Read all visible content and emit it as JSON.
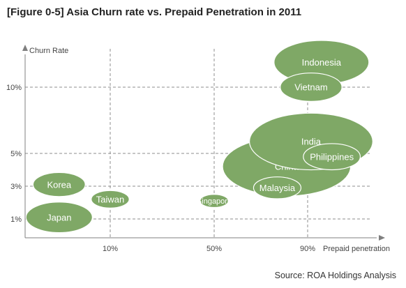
{
  "figure_title": "[Figure 0-5] Asia Churn rate vs. Prepaid Penetration in 2011",
  "source": "Source: ROA Holdings Analysis",
  "chart_data": {
    "type": "scatter",
    "subtype": "bubble",
    "title": "[Figure 0-5] Asia Churn rate vs. Prepaid Penetration in 2011",
    "xlabel": "Prepaid penetration",
    "ylabel": "Churn Rate",
    "x_ticks": [
      {
        "value": 10,
        "label": "10%"
      },
      {
        "value": 50,
        "label": "50%"
      },
      {
        "value": 90,
        "label": "90%"
      }
    ],
    "y_ticks": [
      {
        "value": 1,
        "label": "1%"
      },
      {
        "value": 3,
        "label": "3%"
      },
      {
        "value": 5,
        "label": "5%"
      },
      {
        "value": 10,
        "label": "10%"
      }
    ],
    "grid": "dashed at tick values",
    "points": [
      {
        "label": "Indonesia",
        "x": 94,
        "y": 11.3,
        "size": 1.0
      },
      {
        "label": "India",
        "x": 91,
        "y": 5.9,
        "size": 1.3
      },
      {
        "label": "China",
        "x": 81,
        "y": 4.2,
        "size": 1.35
      },
      {
        "label": "Vietnam",
        "x": 91,
        "y": 10.0,
        "size": 0.65
      },
      {
        "label": "Philippines",
        "x": 97,
        "y": 4.8,
        "size": 0.6
      },
      {
        "label": "Malaysia",
        "x": 77,
        "y": 2.9,
        "size": 0.5
      },
      {
        "label": "Korea",
        "x": -2,
        "y": 3.1,
        "size": 0.55
      },
      {
        "label": "Taiwan",
        "x": 10,
        "y": 2.2,
        "size": 0.4
      },
      {
        "label": "Japan",
        "x": -2,
        "y": 1.1,
        "size": 0.7
      },
      {
        "label": "Singapore",
        "x": 50,
        "y": 2.1,
        "size": 0.3
      }
    ],
    "colors": {
      "bubble_fill": "#7fa866",
      "bubble_stroke": "#ffffff",
      "bubble_text": "#ffffff",
      "grid": "#8c8c8c",
      "axis": "#7f7f7f"
    },
    "xlim": [
      -10,
      110
    ],
    "ylim": [
      0,
      12
    ]
  }
}
